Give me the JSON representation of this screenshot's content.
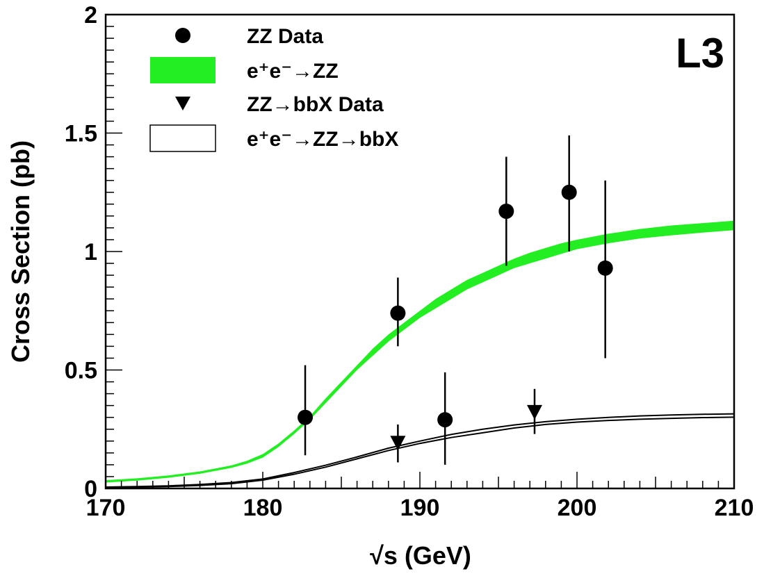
{
  "chart_data": {
    "type": "scatter",
    "xlabel": "√s (GeV)",
    "ylabel": "Cross Section (pb)",
    "xlim": [
      170,
      210
    ],
    "ylim": [
      0,
      2
    ],
    "x_ticks": [
      {
        "value": 170,
        "label": "170"
      },
      {
        "value": 180,
        "label": "180"
      },
      {
        "value": 190,
        "label": "190"
      },
      {
        "value": 200,
        "label": "200"
      },
      {
        "value": 210,
        "label": "210"
      }
    ],
    "y_ticks": [
      {
        "value": 0,
        "label": "0"
      },
      {
        "value": 0.5,
        "label": "0.5"
      },
      {
        "value": 1,
        "label": "1"
      },
      {
        "value": 1.5,
        "label": "1.5"
      },
      {
        "value": 2,
        "label": "2"
      }
    ],
    "experiment_label": "L3",
    "legend_position": "top-left",
    "grid": false,
    "series": [
      {
        "name": "ZZ Data",
        "kind": "points",
        "marker": "circle",
        "color": "#000000",
        "points": [
          {
            "x": 182.7,
            "y": 0.3,
            "ylo": 0.14,
            "yhi": 0.52
          },
          {
            "x": 188.6,
            "y": 0.74,
            "ylo": 0.6,
            "yhi": 0.89
          },
          {
            "x": 191.6,
            "y": 0.29,
            "ylo": 0.1,
            "yhi": 0.49
          },
          {
            "x": 195.5,
            "y": 1.17,
            "ylo": 0.94,
            "yhi": 1.4
          },
          {
            "x": 199.5,
            "y": 1.25,
            "ylo": 1.0,
            "yhi": 1.49
          },
          {
            "x": 201.8,
            "y": 0.93,
            "ylo": 0.55,
            "yhi": 1.3
          }
        ]
      },
      {
        "name": "e⁺e⁻→ZZ",
        "kind": "band",
        "color": "#22ee22",
        "x": [
          170,
          172,
          174,
          176,
          178,
          179,
          180,
          181,
          182,
          183,
          184,
          185,
          186,
          187,
          188,
          189,
          190,
          191,
          192,
          193,
          194,
          195,
          196,
          197,
          198,
          199,
          200,
          202,
          204,
          206,
          208,
          210
        ],
        "ylow": [
          0.025,
          0.033,
          0.045,
          0.062,
          0.087,
          0.105,
          0.13,
          0.175,
          0.23,
          0.29,
          0.36,
          0.43,
          0.5,
          0.56,
          0.62,
          0.67,
          0.72,
          0.76,
          0.8,
          0.84,
          0.87,
          0.9,
          0.93,
          0.95,
          0.97,
          0.99,
          1.01,
          1.035,
          1.055,
          1.068,
          1.08,
          1.09
        ],
        "yhigh": [
          0.035,
          0.043,
          0.055,
          0.072,
          0.097,
          0.117,
          0.145,
          0.19,
          0.245,
          0.305,
          0.38,
          0.45,
          0.52,
          0.59,
          0.65,
          0.7,
          0.75,
          0.8,
          0.84,
          0.88,
          0.91,
          0.94,
          0.97,
          0.995,
          1.015,
          1.035,
          1.05,
          1.075,
          1.095,
          1.11,
          1.12,
          1.13
        ]
      },
      {
        "name": "ZZ→bbX Data",
        "kind": "points",
        "marker": "triangle-down",
        "color": "#000000",
        "points": [
          {
            "x": 188.6,
            "y": 0.19,
            "ylo": 0.11,
            "yhi": 0.27
          },
          {
            "x": 197.3,
            "y": 0.32,
            "ylo": 0.23,
            "yhi": 0.42
          }
        ]
      },
      {
        "name": "e⁺e⁻→ZZ→bbX",
        "kind": "band-outline",
        "color": "#000000",
        "x": [
          170,
          172,
          174,
          176,
          178,
          180,
          182,
          184,
          186,
          188,
          190,
          192,
          194,
          196,
          198,
          200,
          202,
          204,
          206,
          208,
          210
        ],
        "ylow": [
          0.003,
          0.005,
          0.008,
          0.013,
          0.02,
          0.035,
          0.06,
          0.09,
          0.125,
          0.16,
          0.19,
          0.215,
          0.235,
          0.255,
          0.27,
          0.28,
          0.287,
          0.292,
          0.296,
          0.299,
          0.301
        ],
        "yhigh": [
          0.006,
          0.008,
          0.011,
          0.017,
          0.025,
          0.04,
          0.067,
          0.098,
          0.133,
          0.17,
          0.2,
          0.228,
          0.25,
          0.268,
          0.282,
          0.292,
          0.3,
          0.306,
          0.31,
          0.313,
          0.315
        ]
      }
    ]
  }
}
